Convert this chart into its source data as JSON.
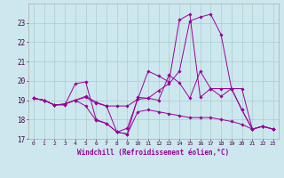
{
  "xlabel": "Windchill (Refroidissement éolien,°C)",
  "background_color": "#cce8ee",
  "grid_color": "#aacccc",
  "line_color": "#990099",
  "xmin": -0.5,
  "xmax": 23.5,
  "ymin": 17,
  "ymax": 24,
  "yticks": [
    17,
    18,
    19,
    20,
    21,
    22,
    23
  ],
  "xticks": [
    0,
    1,
    2,
    3,
    4,
    5,
    6,
    7,
    8,
    9,
    10,
    11,
    12,
    13,
    14,
    15,
    16,
    17,
    18,
    19,
    20,
    21,
    22,
    23
  ],
  "series": [
    [
      19.1,
      19.0,
      18.75,
      18.75,
      19.85,
      19.95,
      18.0,
      17.8,
      17.35,
      17.25,
      19.15,
      19.1,
      19.0,
      20.3,
      19.9,
      19.1,
      20.5,
      19.6,
      19.6,
      19.6,
      19.6,
      17.5,
      17.65,
      17.5
    ],
    [
      19.1,
      19.0,
      18.75,
      18.8,
      19.0,
      19.2,
      18.9,
      18.7,
      18.7,
      18.7,
      19.05,
      19.1,
      19.5,
      19.85,
      20.5,
      23.1,
      23.3,
      23.45,
      22.4,
      19.6,
      18.5,
      17.5,
      17.65,
      17.5
    ],
    [
      19.1,
      19.0,
      18.75,
      18.8,
      19.0,
      19.15,
      18.85,
      18.7,
      17.35,
      17.55,
      19.05,
      20.5,
      20.25,
      19.95,
      23.15,
      23.45,
      19.15,
      19.6,
      19.2,
      19.6,
      18.5,
      17.5,
      17.65,
      17.5
    ],
    [
      19.1,
      19.0,
      18.75,
      18.8,
      19.0,
      18.7,
      17.95,
      17.8,
      17.35,
      17.25,
      18.4,
      18.5,
      18.4,
      18.3,
      18.2,
      18.1,
      18.1,
      18.1,
      18.0,
      17.9,
      17.75,
      17.5,
      17.65,
      17.5
    ]
  ]
}
